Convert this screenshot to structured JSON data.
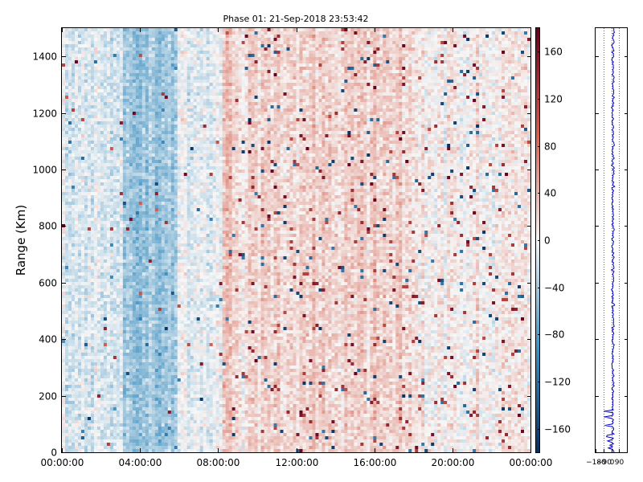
{
  "figure_title": "Phase 01: 21-Sep-2018 23:53:42",
  "chart_data": [
    {
      "type": "heatmap",
      "title": "Phase 01: 21-Sep-2018 23:53:42",
      "xlabel": "",
      "ylabel": "Range (Km)",
      "x_tick_labels": [
        "00:00:00",
        "04:00:00",
        "08:00:00",
        "12:00:00",
        "16:00:00",
        "20:00:00",
        "00:00:00"
      ],
      "x_tick_hours": [
        0,
        4,
        8,
        12,
        16,
        20,
        24
      ],
      "xlim_hours": [
        0,
        24
      ],
      "y_ticks": [
        0,
        200,
        400,
        600,
        800,
        1000,
        1200,
        1400
      ],
      "ylim": [
        0,
        1500
      ],
      "colorbar": {
        "colormap": "RdBu_r",
        "vmin": -180,
        "vmax": 180,
        "ticks": [
          -160,
          -120,
          -80,
          -40,
          0,
          40,
          80,
          120,
          160
        ],
        "tick_labels": [
          "−160",
          "−120",
          "−80",
          "−40",
          "0",
          "40",
          "80",
          "120",
          "160"
        ],
        "colors": {
          "neg_end": "#053061",
          "neg_mid": "#4393c3",
          "zero": "#f7f7f7",
          "pos_mid": "#d6604d",
          "pos_end": "#67001f"
        }
      },
      "bands_description_free": true,
      "column_bias": [
        {
          "from_hour": 0.0,
          "to_hour": 3.2,
          "mean_phase": -12
        },
        {
          "from_hour": 3.2,
          "to_hour": 5.9,
          "mean_phase": -45
        },
        {
          "from_hour": 5.9,
          "to_hour": 8.2,
          "mean_phase": -6
        },
        {
          "from_hour": 8.2,
          "to_hour": 8.7,
          "mean_phase": 35
        },
        {
          "from_hour": 8.7,
          "to_hour": 18.0,
          "mean_phase": 20
        },
        {
          "from_hour": 18.0,
          "to_hour": 24.0,
          "mean_phase": 8
        }
      ]
    },
    {
      "type": "line",
      "series_color": "#0000cc",
      "x_ticks": [
        -180,
        -90,
        0,
        90
      ],
      "x_tick_labels": [
        "−180",
        "−90",
        "0",
        "90"
      ],
      "xlim": [
        -180,
        180
      ],
      "ylim": [
        0,
        1500
      ],
      "y_ticks": [
        0,
        200,
        400,
        600,
        800,
        1000,
        1200,
        1400
      ],
      "gridlines_x": [
        -90,
        0,
        90
      ],
      "profile_mean": 20,
      "profile_spread": 30
    }
  ]
}
